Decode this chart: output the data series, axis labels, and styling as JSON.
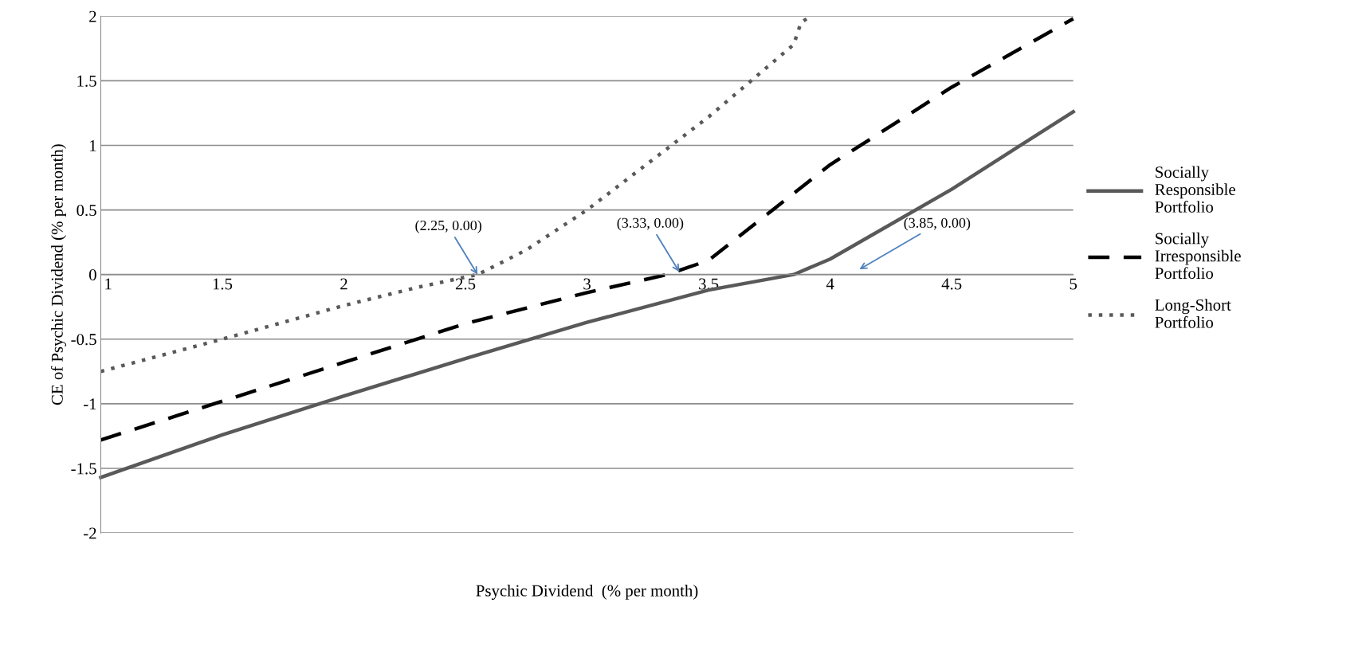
{
  "chart_data": {
    "type": "line",
    "xlabel": "Psychic Dividend  (% per month)",
    "ylabel": "CE of Psychic Dividend (% per month)",
    "xlim": [
      1,
      5
    ],
    "xticks": [
      1,
      1.5,
      2,
      2.5,
      3,
      3.5,
      4,
      4.5,
      5
    ],
    "ylim": [
      -2,
      2
    ],
    "yticks": [
      -2,
      -1.5,
      -1,
      -0.5,
      0,
      0.5,
      1,
      1.5,
      2
    ],
    "grid": "y",
    "legend": "right",
    "marker": "none",
    "series": [
      {
        "name": "Socially Responsible Portfolio",
        "color": "#595959",
        "line_style": "solid",
        "x": [
          1,
          1.5,
          2,
          2.5,
          3,
          3.5,
          3.85,
          4,
          4.5,
          5
        ],
        "values": [
          -1.57,
          -1.24,
          -0.94,
          -0.65,
          -0.37,
          -0.12,
          0,
          0.12,
          0.66,
          1.26
        ]
      },
      {
        "name": "Socially Irresponsible Portfolio",
        "color": "#000000",
        "line_style": "dashed",
        "x": [
          1,
          1.5,
          2,
          2.5,
          3,
          3.33,
          3.5,
          4,
          4.5,
          5
        ],
        "values": [
          -1.28,
          -0.98,
          -0.68,
          -0.38,
          -0.14,
          0,
          0.11,
          0.85,
          1.45,
          1.98
        ]
      },
      {
        "name": "Long-Short Portfolio",
        "color": "#595959",
        "line_style": "dotted",
        "x": [
          1,
          1.5,
          2,
          2.3,
          2.55,
          2.75,
          3,
          3.25,
          3.5,
          3.75,
          3.85,
          3.88,
          3.92
        ],
        "values": [
          -0.75,
          -0.5,
          -0.24,
          -0.1,
          0,
          0.19,
          0.5,
          0.86,
          1.22,
          1.62,
          1.78,
          1.95,
          2.0
        ]
      }
    ],
    "annotations": [
      {
        "text": "(2.25, 0.00)",
        "x": 2.55,
        "y": 0
      },
      {
        "text": "(3.33, 0.00)",
        "x": 3.38,
        "y": 0.02
      },
      "(3.85, 0.00)"
    ]
  }
}
